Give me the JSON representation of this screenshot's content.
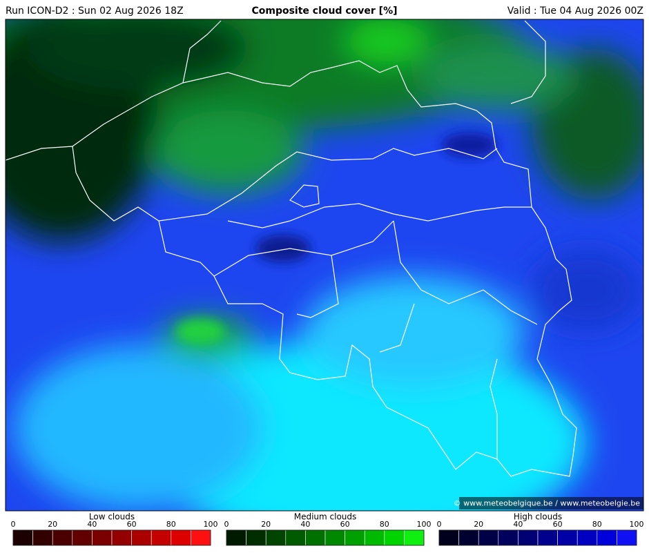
{
  "header": {
    "run": "Run ICON-D2 : Sun 02 Aug 2026 18Z",
    "title": "Composite cloud cover [%]",
    "valid": "Valid : Tue 04 Aug 2026 00Z"
  },
  "copyright": "© www.meteobelgique.be / www.meteobelgie.be",
  "legends": [
    {
      "title": "Low clouds",
      "ticks": [
        0,
        20,
        40,
        60,
        80,
        100
      ],
      "colors": [
        "#1c0000",
        "#330000",
        "#4a0000",
        "#620000",
        "#7a0000",
        "#920000",
        "#ab0000",
        "#c40000",
        "#dd0000",
        "#ff1010"
      ]
    },
    {
      "title": "Medium clouds",
      "ticks": [
        0,
        20,
        40,
        60,
        80,
        100
      ],
      "colors": [
        "#001a00",
        "#002e00",
        "#004400",
        "#005a00",
        "#007000",
        "#008800",
        "#00a000",
        "#00ba00",
        "#00d400",
        "#10f010"
      ]
    },
    {
      "title": "High clouds",
      "ticks": [
        0,
        20,
        40,
        60,
        80,
        100
      ],
      "colors": [
        "#00001c",
        "#000030",
        "#000046",
        "#00005c",
        "#000074",
        "#00008c",
        "#0000a6",
        "#0000c0",
        "#0000da",
        "#1010f4"
      ]
    }
  ]
}
